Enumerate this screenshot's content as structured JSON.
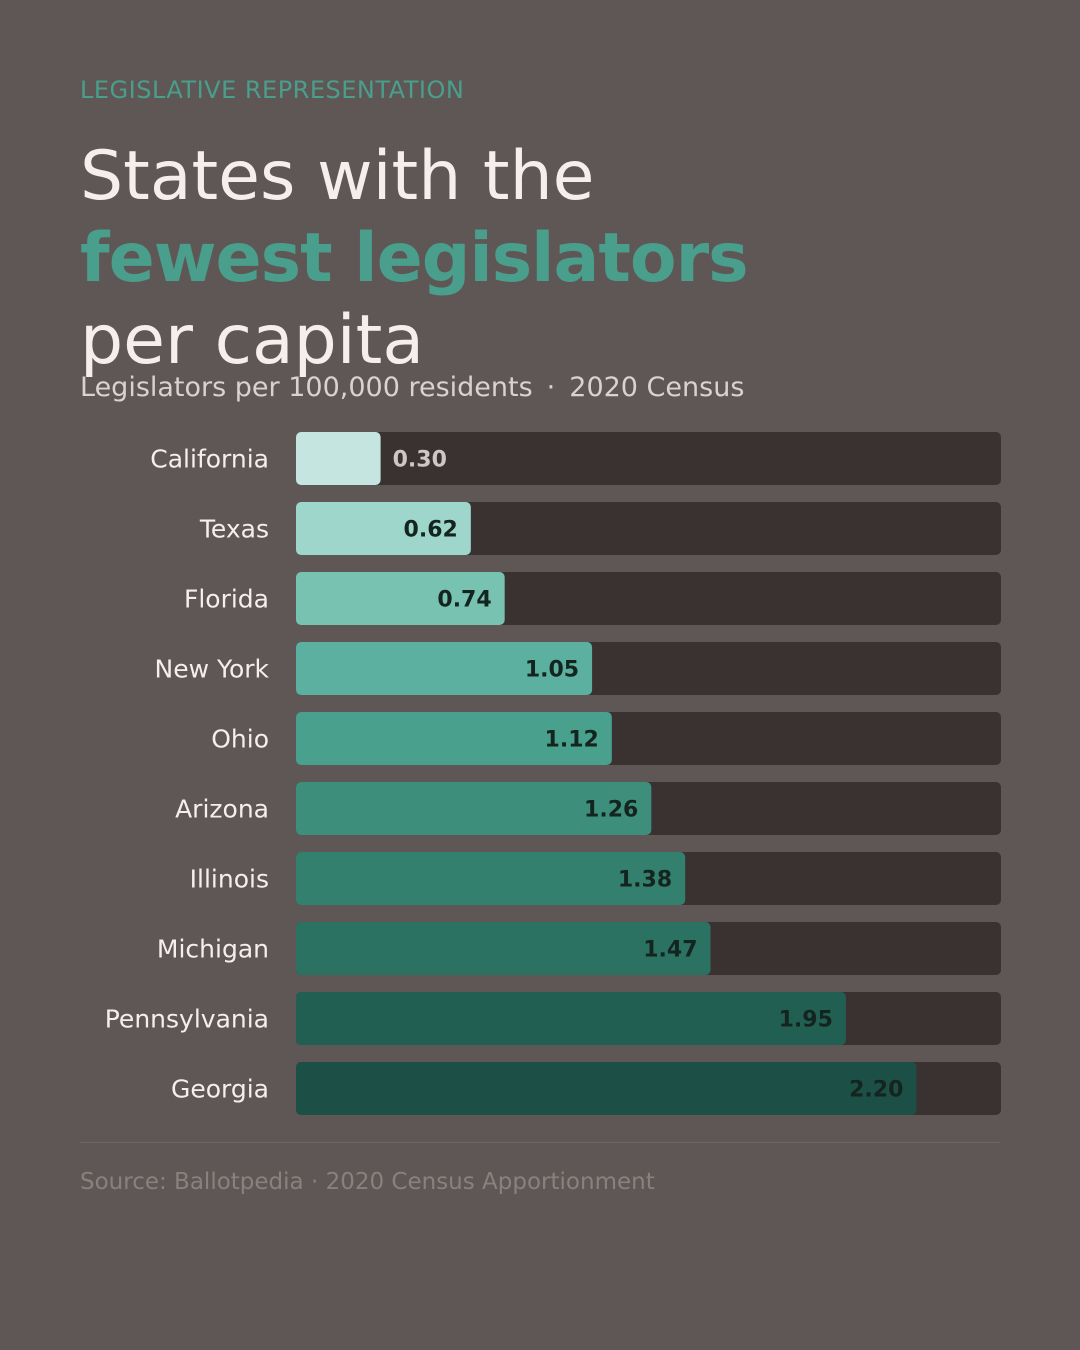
{
  "header": {
    "eyebrow": "LEGISLATIVE REPRESENTATION",
    "title_line1": "States with the",
    "title_line2": "fewest legislators",
    "title_line3": "per capita",
    "subtitle_metric": "Legislators per 100,000 residents",
    "subtitle_separator": "·",
    "subtitle_year": "2020 Census"
  },
  "footer": {
    "source": "Source: Ballotpedia · 2020 Census Apportionment"
  },
  "colors": {
    "background": "#5f5755",
    "accent": "#4a9e8c",
    "track": "#3a3131",
    "label": "#f4eeee",
    "bar_scale": [
      "#c5e6e0",
      "#9fd6cb",
      "#78c2b2",
      "#5bb09f",
      "#48a08d",
      "#3e8e7c",
      "#33806f",
      "#2b7263",
      "#225f53",
      "#1c4f45"
    ]
  },
  "chart_data": {
    "type": "bar",
    "orientation": "horizontal",
    "categories": [
      "California",
      "Texas",
      "Florida",
      "New York",
      "Ohio",
      "Arizona",
      "Illinois",
      "Michigan",
      "Pennsylvania",
      "Georgia"
    ],
    "values": [
      0.3,
      0.62,
      0.74,
      1.05,
      1.12,
      1.26,
      1.38,
      1.47,
      1.95,
      2.2
    ],
    "value_labels": [
      "0.30",
      "0.62",
      "0.74",
      "1.05",
      "1.12",
      "1.26",
      "1.38",
      "1.47",
      "1.95",
      "2.20"
    ],
    "xlim": [
      0,
      2.5
    ],
    "grid": false,
    "legend": "none"
  }
}
